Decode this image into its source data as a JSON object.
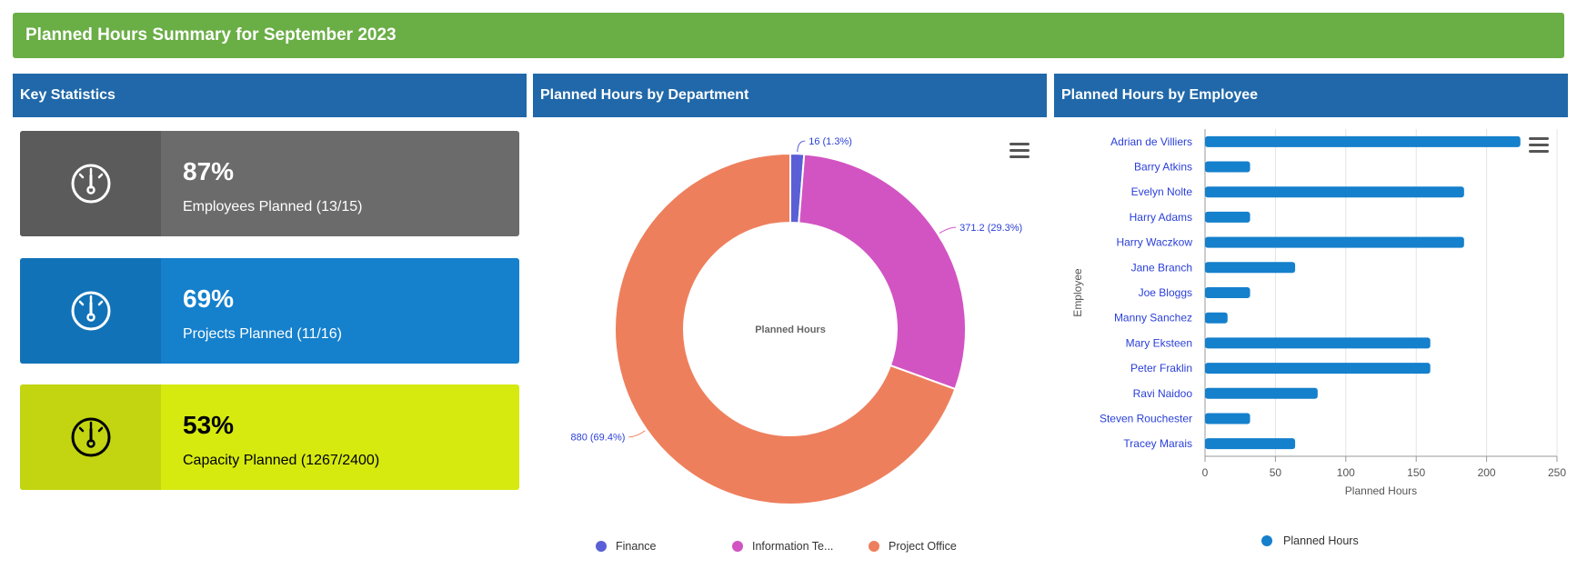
{
  "banner": {
    "title": "Planned Hours Summary for September 2023"
  },
  "panels": {
    "stats": "Key Statistics",
    "department": "Planned Hours by Department",
    "employee": "Planned Hours by Employee"
  },
  "stats": [
    {
      "value": "87%",
      "label": "Employees Planned (13/15)",
      "icon": "gauge-icon",
      "color_main": "#6b6b6b",
      "color_icon": "#5b5b5b",
      "text_color": "#ffffff",
      "icon_color": "#ffffff"
    },
    {
      "value": "69%",
      "label": "Projects Planned (11/16)",
      "icon": "gauge-icon",
      "color_main": "#1580cc",
      "color_icon": "#1272b8",
      "text_color": "#ffffff",
      "icon_color": "#ffffff"
    },
    {
      "value": "53%",
      "label": "Capacity Planned (1267/2400)",
      "icon": "gauge-icon",
      "color_main": "#d6ea10",
      "color_icon": "#c2d510",
      "text_color": "#000000",
      "icon_color": "#000000"
    }
  ],
  "chart_data": [
    {
      "type": "pie",
      "variant": "donut",
      "center_label": "Planned Hours",
      "slices": [
        {
          "name": "Finance",
          "legend": "Finance",
          "value": 16,
          "label": "16 (1.3%)",
          "color": "#5b5fd6"
        },
        {
          "name": "Information Technology",
          "legend": "Information Te...",
          "value": 371.2,
          "label": "371.2 (29.3%)",
          "color": "#d254c3"
        },
        {
          "name": "Project Office",
          "legend": "Project Office",
          "value": 880,
          "label": "880 (69.4%)",
          "color": "#ee7f5d"
        }
      ]
    },
    {
      "type": "bar",
      "orientation": "horizontal",
      "categories": [
        "Adrian de Villiers",
        "Barry Atkins",
        "Evelyn Nolte",
        "Harry Adams",
        "Harry Waczkow",
        "Jane Branch",
        "Joe Bloggs",
        "Manny Sanchez",
        "Mary Eksteen",
        "Peter Fraklin",
        "Ravi Naidoo",
        "Steven Rouchester",
        "Tracey Marais"
      ],
      "series": [
        {
          "name": "Planned Hours",
          "values": [
            224,
            32,
            184,
            32,
            184,
            64,
            32,
            16,
            160,
            160,
            80,
            32,
            64
          ],
          "color": "#1580cc"
        }
      ],
      "xlabel": "Planned Hours",
      "ylabel": "Employee",
      "xlim": [
        0,
        250
      ],
      "xticks": [
        0,
        50,
        100,
        150,
        200,
        250
      ],
      "grid": true,
      "legend": "bottom"
    }
  ]
}
